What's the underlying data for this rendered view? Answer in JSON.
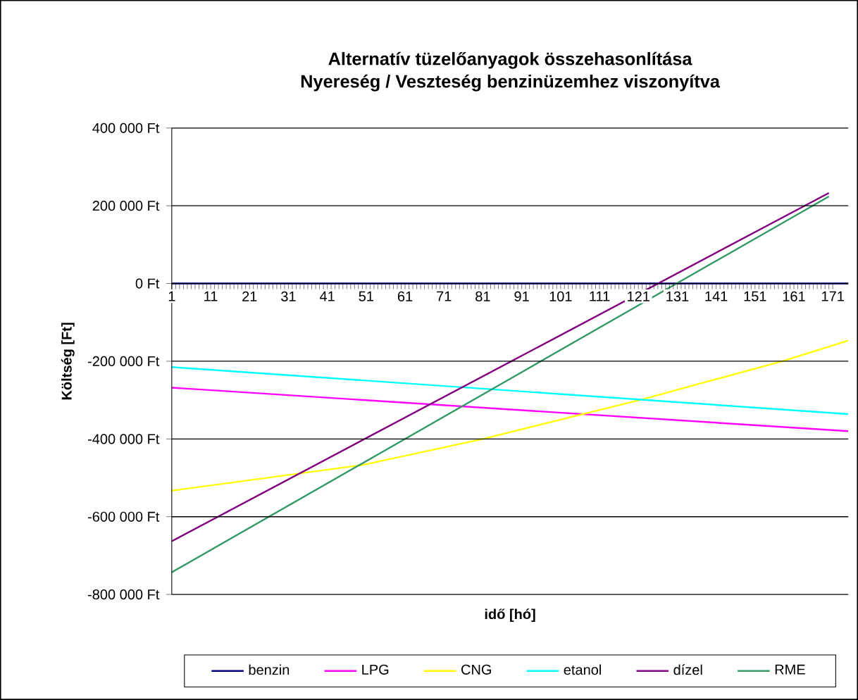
{
  "chart_data": {
    "type": "line",
    "title": "Alternatív tüzelőanyagok összehasonlítása",
    "subtitle": "Nyereség / Veszteség benzinüzemhez viszonyítva",
    "xlabel": "idő [hó]",
    "ylabel": "Költség [Ft]",
    "xlim": [
      1,
      175
    ],
    "xticks": [
      1,
      11,
      21,
      31,
      41,
      51,
      61,
      71,
      81,
      91,
      101,
      111,
      121,
      131,
      141,
      151,
      161,
      171
    ],
    "ylim": [
      -800000,
      400000
    ],
    "yticks": [
      {
        "value": -800000,
        "label": "-800 000 Ft"
      },
      {
        "value": -600000,
        "label": "-600 000 Ft"
      },
      {
        "value": -400000,
        "label": "-400 000 Ft"
      },
      {
        "value": -200000,
        "label": "-200 000 Ft"
      },
      {
        "value": 0,
        "label": "0 Ft"
      },
      {
        "value": 200000,
        "label": "200 000 Ft"
      },
      {
        "value": 400000,
        "label": "400 000 Ft"
      }
    ],
    "grid": "y",
    "legend": "bottom",
    "series": [
      {
        "name": "benzin",
        "color": "#000080",
        "x": [
          1,
          175
        ],
        "values": [
          0,
          0
        ]
      },
      {
        "name": "LPG",
        "color": "#ff00ff",
        "x": [
          1,
          175
        ],
        "values": [
          -268000,
          -380000
        ]
      },
      {
        "name": "CNG",
        "color": "#ffff00",
        "x": [
          1,
          50,
          81,
          122,
          158,
          175
        ],
        "values": [
          -533000,
          -467000,
          -400000,
          -298000,
          -200000,
          -147000
        ]
      },
      {
        "name": "etanol",
        "color": "#00ffff",
        "x": [
          1,
          175
        ],
        "values": [
          -215000,
          -336000
        ]
      },
      {
        "name": "dízel",
        "color": "#800080",
        "x": [
          1,
          170
        ],
        "values": [
          -663000,
          233000
        ]
      },
      {
        "name": "RME",
        "color": "#339966",
        "x": [
          1,
          170
        ],
        "values": [
          -743000,
          224000
        ]
      }
    ]
  }
}
